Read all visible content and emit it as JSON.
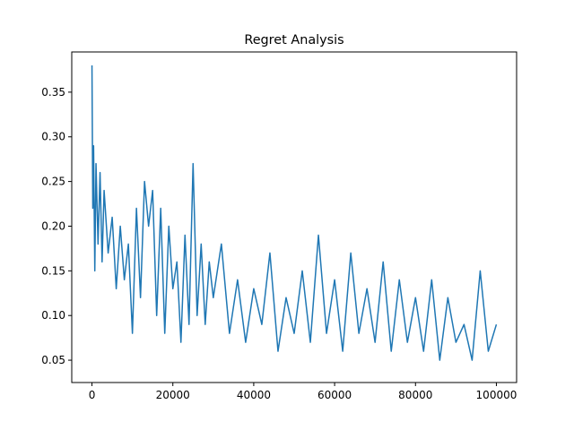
{
  "chart_data": {
    "type": "line",
    "title": "Regret Analysis",
    "xlabel": "",
    "ylabel": "",
    "xlim": [
      -5000,
      105000
    ],
    "ylim": [
      0.025,
      0.395
    ],
    "xticks": [
      0,
      20000,
      40000,
      60000,
      80000,
      100000
    ],
    "xtick_labels": [
      "0",
      "20000",
      "40000",
      "60000",
      "80000",
      "100000"
    ],
    "yticks": [
      0.05,
      0.1,
      0.15,
      0.2,
      0.25,
      0.3,
      0.35
    ],
    "ytick_labels": [
      "0.05",
      "0.10",
      "0.15",
      "0.20",
      "0.25",
      "0.30",
      "0.35"
    ],
    "grid": false,
    "series": [
      {
        "color": "#1f77b4",
        "x": [
          0,
          200,
          400,
          700,
          1000,
          1500,
          2000,
          2500,
          3000,
          4000,
          5000,
          6000,
          7000,
          8000,
          9000,
          10000,
          11000,
          12000,
          13000,
          14000,
          15000,
          16000,
          17000,
          18000,
          19000,
          20000,
          21000,
          22000,
          23000,
          24000,
          25000,
          26000,
          27000,
          28000,
          29000,
          30000,
          32000,
          34000,
          36000,
          38000,
          40000,
          42000,
          44000,
          46000,
          48000,
          50000,
          52000,
          54000,
          56000,
          58000,
          60000,
          62000,
          64000,
          66000,
          68000,
          70000,
          72000,
          74000,
          76000,
          78000,
          80000,
          82000,
          84000,
          86000,
          88000,
          90000,
          92000,
          94000,
          96000,
          98000,
          100000
        ],
        "y": [
          0.38,
          0.22,
          0.29,
          0.15,
          0.27,
          0.18,
          0.26,
          0.16,
          0.24,
          0.17,
          0.21,
          0.13,
          0.2,
          0.14,
          0.18,
          0.08,
          0.22,
          0.12,
          0.25,
          0.2,
          0.24,
          0.1,
          0.22,
          0.08,
          0.2,
          0.13,
          0.16,
          0.07,
          0.19,
          0.09,
          0.27,
          0.1,
          0.18,
          0.09,
          0.16,
          0.12,
          0.18,
          0.08,
          0.14,
          0.07,
          0.13,
          0.09,
          0.17,
          0.06,
          0.12,
          0.08,
          0.15,
          0.07,
          0.19,
          0.08,
          0.14,
          0.06,
          0.17,
          0.08,
          0.13,
          0.07,
          0.16,
          0.06,
          0.14,
          0.07,
          0.12,
          0.06,
          0.14,
          0.05,
          0.12,
          0.07,
          0.09,
          0.05,
          0.15,
          0.06,
          0.09
        ]
      }
    ]
  }
}
